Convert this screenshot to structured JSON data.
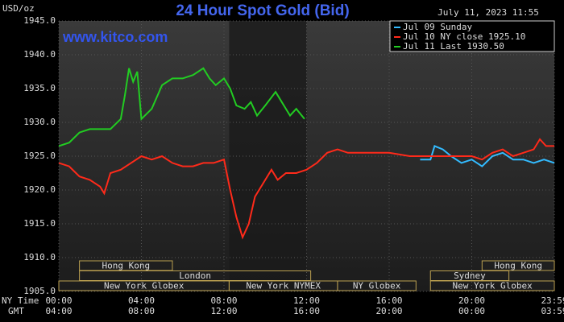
{
  "chart_data": {
    "type": "line",
    "title": "24 Hour Spot Gold (Bid)",
    "date": "July 11, 2023 11:55",
    "y_label": "USD/oz",
    "watermark": "www.kitco.com",
    "x_axis_names": [
      "NY Time",
      "GMT"
    ],
    "xlim": [
      0,
      24
    ],
    "xticks": [
      {
        "value": 0,
        "label": "00:00"
      },
      {
        "value": 4,
        "label": "04:00"
      },
      {
        "value": 8,
        "label": "08:00"
      },
      {
        "value": 12,
        "label": "12:00"
      },
      {
        "value": 16,
        "label": "16:00"
      },
      {
        "value": 20,
        "label": "20:00"
      },
      {
        "value": 24,
        "label": "23:59"
      }
    ],
    "gmt_labels": [
      "04:00",
      "08:00",
      "12:00",
      "16:00",
      "20:00",
      "00:00",
      "03:59"
    ],
    "ylim": [
      1905,
      1945
    ],
    "yticks": [
      {
        "value": 1905,
        "label": "1905.0"
      },
      {
        "value": 1910,
        "label": "1910.0"
      },
      {
        "value": 1915,
        "label": "1915.0"
      },
      {
        "value": 1920,
        "label": "1920.0"
      },
      {
        "value": 1925,
        "label": "1925.0"
      },
      {
        "value": 1930,
        "label": "1930.0"
      },
      {
        "value": 1935,
        "label": "1935.0"
      },
      {
        "value": 1940,
        "label": "1940.0"
      },
      {
        "value": 1945,
        "label": "1945.0"
      }
    ],
    "grid": true,
    "shaded_range": [
      8.25,
      12
    ],
    "sessions": [
      {
        "label": "Hong Kong",
        "start": 1,
        "end": 5.5
      },
      {
        "label": "London",
        "start": 1,
        "end": 12.2
      },
      {
        "label": "New York Globex",
        "start": 0,
        "end": 8.25
      },
      {
        "label": "New York NYMEX",
        "start": 8.25,
        "end": 13.5
      },
      {
        "label": "NY Globex",
        "start": 13.5,
        "end": 17.3
      },
      {
        "label": "Hong Kong",
        "start": 20.5,
        "end": 24
      },
      {
        "label": "Sydney",
        "start": 18,
        "end": 21.8
      },
      {
        "label": "New York Globex",
        "start": 18,
        "end": 24
      }
    ],
    "series": [
      {
        "name": "Jul 09 Sunday",
        "color": "#33bbff",
        "x": [
          17.5,
          18,
          18.2,
          18.6,
          19,
          19.5,
          20,
          20.5,
          21,
          21.5,
          22,
          22.5,
          23,
          23.5,
          24
        ],
        "values": [
          1924.5,
          1924.5,
          1926.5,
          1926,
          1925,
          1924,
          1924.5,
          1923.5,
          1925,
          1925.5,
          1924.5,
          1924.5,
          1924,
          1924.5,
          1924
        ]
      },
      {
        "name": "Jul 10 NY close 1925.10",
        "color": "#ff2a1a",
        "x": [
          0,
          0.5,
          1,
          1.5,
          2,
          2.2,
          2.5,
          3,
          3.5,
          4,
          4.5,
          5,
          5.5,
          6,
          6.5,
          7,
          7.5,
          8,
          8.3,
          8.6,
          8.9,
          9.2,
          9.5,
          10,
          10.3,
          10.6,
          11,
          11.5,
          12,
          12.5,
          13,
          13.5,
          14,
          14.5,
          15,
          16,
          17,
          18,
          19,
          20,
          20.5,
          21,
          21.5,
          22,
          22.5,
          23,
          23.3,
          23.6,
          24
        ],
        "values": [
          1924,
          1923.5,
          1922,
          1921.5,
          1920.5,
          1919.5,
          1922.5,
          1923,
          1924,
          1925,
          1924.5,
          1925,
          1924,
          1923.5,
          1923.5,
          1924,
          1924,
          1924.5,
          1920,
          1916,
          1913,
          1915,
          1919,
          1921.5,
          1923,
          1921.5,
          1922.5,
          1922.5,
          1923,
          1924,
          1925.5,
          1926,
          1925.5,
          1925.5,
          1925.5,
          1925.5,
          1925,
          1925,
          1925,
          1925,
          1924.5,
          1925.5,
          1926,
          1925,
          1925.5,
          1926,
          1927.5,
          1926.5,
          1926.5
        ]
      },
      {
        "name": "Jul 11 Last 1930.50",
        "color": "#22cc22",
        "x": [
          0,
          0.5,
          1,
          1.5,
          2,
          2.5,
          3,
          3.2,
          3.4,
          3.6,
          3.8,
          4,
          4.5,
          5,
          5.5,
          6,
          6.5,
          7,
          7.3,
          7.6,
          8,
          8.3,
          8.6,
          9,
          9.3,
          9.6,
          10,
          10.5,
          10.8,
          11.2,
          11.5,
          11.9
        ],
        "values": [
          1926.5,
          1927,
          1928.5,
          1929,
          1929,
          1929,
          1930.5,
          1934,
          1938,
          1936,
          1937.5,
          1930.5,
          1932,
          1935.5,
          1936.5,
          1936.5,
          1937,
          1938,
          1936.5,
          1935.5,
          1936.5,
          1935,
          1932.5,
          1932,
          1933,
          1931,
          1932.5,
          1934.5,
          1933,
          1931,
          1932,
          1930.5
        ]
      }
    ]
  }
}
